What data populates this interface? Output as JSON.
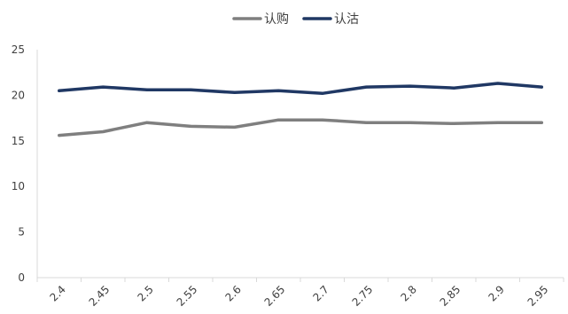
{
  "chart_data": {
    "type": "line",
    "x": [
      "2.4",
      "2.45",
      "2.5",
      "2.55",
      "2.6",
      "2.65",
      "2.7",
      "2.75",
      "2.8",
      "2.85",
      "2.9",
      "2.95"
    ],
    "series": [
      {
        "name": "认购",
        "color": "#7f7f7f",
        "values": [
          15.6,
          16.0,
          17.0,
          16.6,
          16.5,
          17.3,
          17.3,
          17.0,
          17.0,
          16.9,
          17.0,
          17.0
        ]
      },
      {
        "name": "认沽",
        "color": "#203864",
        "values": [
          20.5,
          20.9,
          20.6,
          20.6,
          20.3,
          20.5,
          20.2,
          20.9,
          21.0,
          20.8,
          21.3,
          20.9
        ]
      }
    ],
    "ylim": [
      0,
      25
    ],
    "yticks": [
      0,
      5,
      10,
      15,
      20,
      25
    ],
    "title": "",
    "xlabel": "",
    "ylabel": "",
    "grid": false,
    "legend": "top-center",
    "axis_color": "#d9d9d9"
  }
}
